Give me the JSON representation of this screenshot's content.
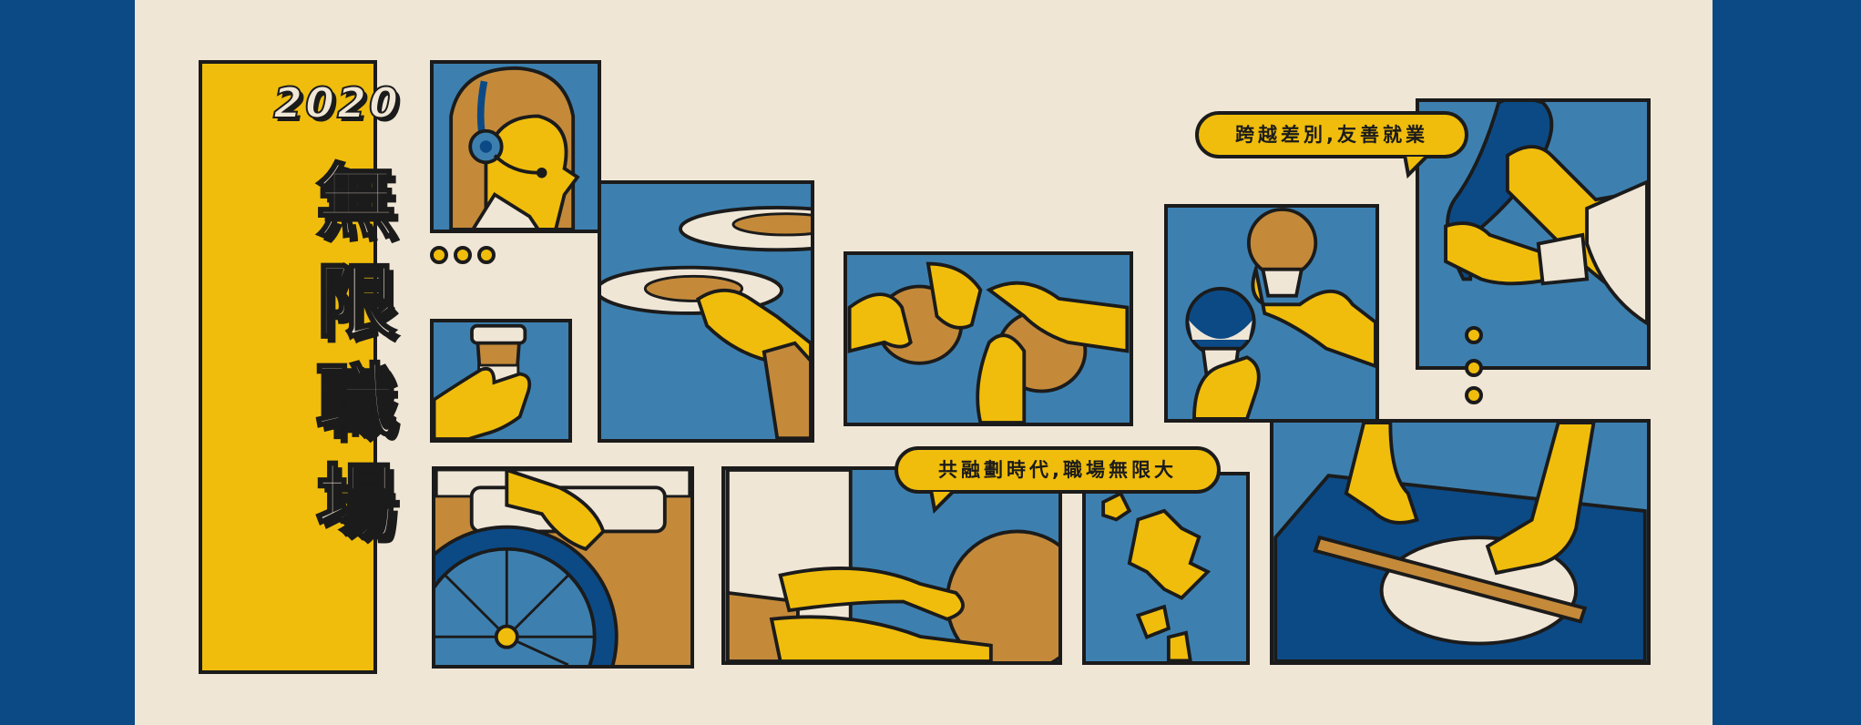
{
  "banner": {
    "year": "2020",
    "title_chars": [
      "無",
      "限",
      "職",
      "場"
    ],
    "bubble_top": "跨越差別,友善就業",
    "bubble_bottom": "共融劃時代,職場無限大"
  },
  "colors": {
    "outer_blue": "#0c4a86",
    "cream": "#f0e6d6",
    "yellow": "#f0bd0c",
    "panel_blue": "#3d80b0",
    "brown": "#c48a3a",
    "outline": "#1b1b1b"
  },
  "illustrations": [
    "call-center-headset",
    "coffee-cup",
    "serving-plates",
    "kneading-dough-hands",
    "light-bulbs",
    "piping-bag",
    "wheelchair",
    "crafting-with-hands",
    "taiwan-map-pieces",
    "rolling-pin"
  ]
}
